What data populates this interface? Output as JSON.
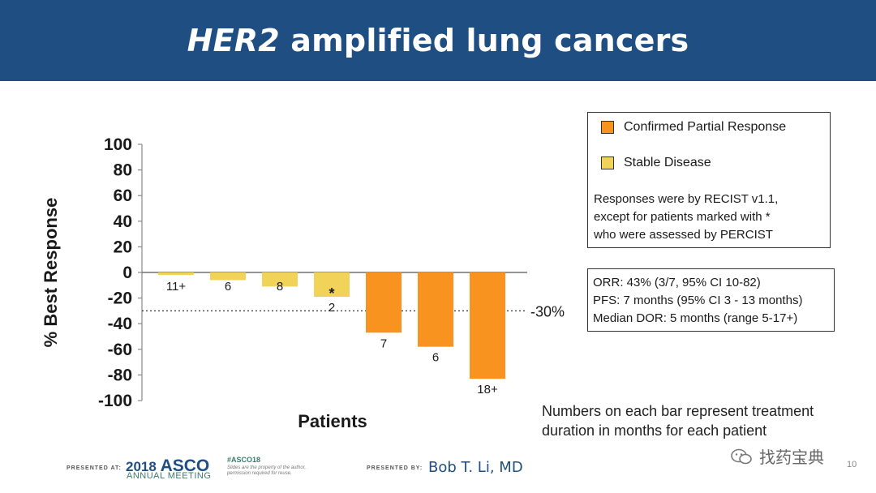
{
  "header": {
    "title_italic": "HER2",
    "title_rest": " amplified lung cancers"
  },
  "chart_data": {
    "type": "bar",
    "ylabel": "% Best Response",
    "xlabel": "Patients",
    "ylim": [
      -100,
      100
    ],
    "yticks": [
      100,
      80,
      60,
      40,
      20,
      0,
      -20,
      -40,
      -60,
      -80,
      -100
    ],
    "grid": false,
    "categories": [
      "",
      "",
      "",
      "",
      "",
      "",
      ""
    ],
    "values": [
      -2,
      -6,
      -11,
      -19,
      -47,
      -58,
      -83
    ],
    "bar_labels": [
      "11+",
      "6",
      "8",
      "2",
      "7",
      "6",
      "18+"
    ],
    "bar_markers": [
      "",
      "",
      "",
      "*",
      "",
      "",
      ""
    ],
    "series_response": [
      "Stable Disease",
      "Stable Disease",
      "Stable Disease",
      "Stable Disease",
      "Confirmed Partial Response",
      "Confirmed Partial Response",
      "Confirmed Partial Response"
    ],
    "reference_line": {
      "value": -30,
      "label": "-30%",
      "style": "dotted"
    },
    "legend": [
      {
        "name": "Confirmed Partial Response",
        "color": "#f7931e"
      },
      {
        "name": "Stable Disease",
        "color": "#f2d35a"
      }
    ],
    "legend_position": "right"
  },
  "legend_note": [
    "Responses were by RECIST v1.1,",
    "except for patients marked with *",
    "who were assessed by PERCIST"
  ],
  "stats": [
    "ORR: 43% (3/7, 95% CI 10-82)",
    "PFS: 7 months (95% CI 3 - 13 months)",
    "Median DOR: 5 months (range 5-17+)"
  ],
  "footnote": [
    "Numbers on each bar represent treatment",
    "duration in months for each patient"
  ],
  "footer": {
    "presented_at": "PRESENTED AT:",
    "asco_year": "2018",
    "asco_name": "ASCO",
    "asco_sub": "ANNUAL MEETING",
    "hashtag": "#ASCO18",
    "fine_print": "Slides are the property of the author, permission required for reuse.",
    "presented_by": "PRESENTED BY:",
    "presenter": "Bob T. Li, MD",
    "watermark": "找药宝典",
    "slide_number": "10"
  },
  "colors": {
    "header_bg": "#1f4e82",
    "partial_response": "#f7931e",
    "stable_disease": "#f2d35a"
  }
}
